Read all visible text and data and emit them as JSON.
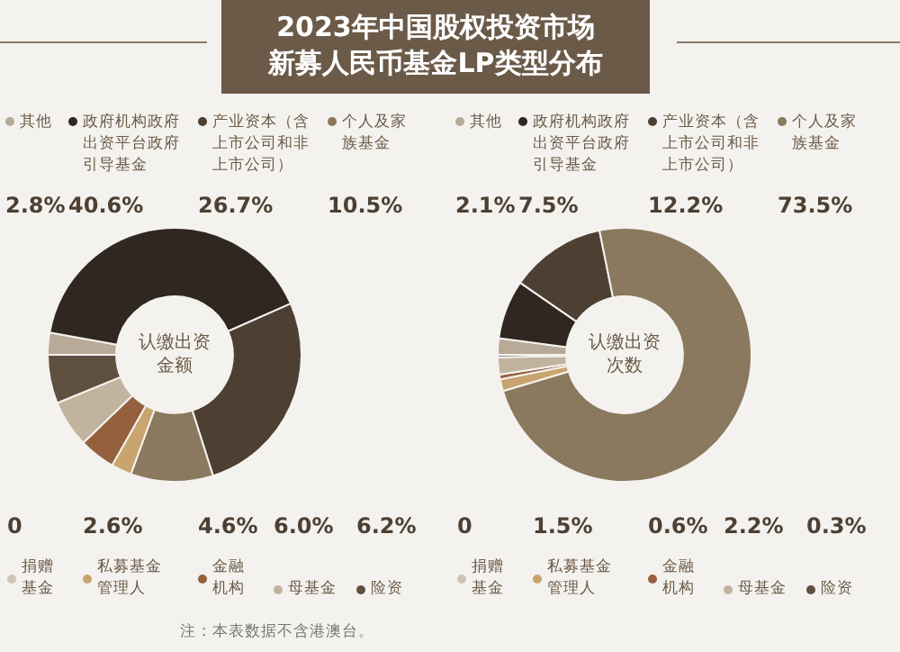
{
  "chart_data": [
    {
      "type": "donut",
      "title": "2023年中国股权投资市场",
      "subtitle": "新募人民币基金LP类型分布",
      "categories": [
        "其他",
        "政府机构政府出资平台政府引导基金",
        "产业资本（含上市公司和非上市公司）",
        "个人及家族基金",
        "捐赠基金",
        "私募基金管理人",
        "金融机构",
        "母基金",
        "险资"
      ],
      "series": [
        {
          "name": "认缴出资金额",
          "values": [
            2.8,
            40.6,
            26.7,
            10.5,
            0,
            2.6,
            4.6,
            6.0,
            6.2
          ]
        }
      ],
      "value_labels": [
        "2.8%",
        "40.6%",
        "26.7%",
        "10.5%",
        "0",
        "2.6%",
        "4.6%",
        "6.0%",
        "6.2%"
      ],
      "colors": [
        "#b8aa98",
        "#2f2720",
        "#4d4033",
        "#8a785f",
        "#cfc4b4",
        "#c8a46e",
        "#94603e",
        "#c2b39e",
        "#5e4f3f"
      ],
      "legend": "top",
      "annotations": [
        "注：本表数据不含港澳台。"
      ]
    },
    {
      "type": "donut",
      "categories": [
        "其他",
        "政府机构政府出资平台政府引导基金",
        "产业资本（含上市公司和非上市公司）",
        "个人及家族基金",
        "捐赠基金",
        "私募基金管理人",
        "金融机构",
        "母基金",
        "险资"
      ],
      "series": [
        {
          "name": "认缴出资次数",
          "values": [
            2.1,
            7.5,
            12.2,
            73.5,
            0,
            1.5,
            0.6,
            2.2,
            0.3
          ]
        }
      ],
      "value_labels": [
        "2.1%",
        "7.5%",
        "12.2%",
        "73.5%",
        "0",
        "1.5%",
        "0.6%",
        "2.2%",
        "0.3%"
      ],
      "legend": "top",
      "colors": [
        "#b8aa98",
        "#2f2720",
        "#4d4033",
        "#8a785f",
        "#cfc4b4",
        "#c8a46e",
        "#94603e",
        "#c2b39e",
        "#5e4f3f"
      ]
    }
  ]
}
